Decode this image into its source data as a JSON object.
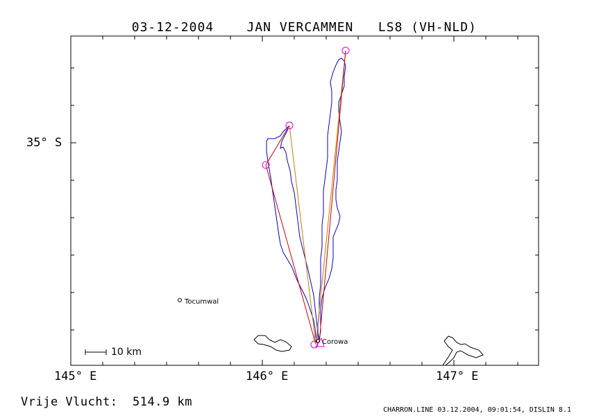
{
  "header": {
    "date": "03-12-2004",
    "pilot": "JAN VERCAMMEN",
    "glider": "LS8 (VH-NLD)"
  },
  "axes": {
    "x_ticks": [
      "145° E",
      "146° E",
      "147° E"
    ],
    "y_ticks": [
      "35° S"
    ]
  },
  "map_labels": {
    "towns": [
      "Tocumwal",
      "Corowa"
    ],
    "scale": "10 km"
  },
  "summary": {
    "free_flight_label": "Vrije Vlucht:",
    "free_flight_value": "514.9 km"
  },
  "footer": {
    "text": "CHARRON.LINE 03.12.2004, 09:01:54, DISLIN 8.1"
  },
  "colors": {
    "frame": "#000000",
    "track": "#0000cc",
    "task_leg_a": "#cc0000",
    "task_leg_b": "#cc7700",
    "turnpoint": "#dd00dd"
  }
}
